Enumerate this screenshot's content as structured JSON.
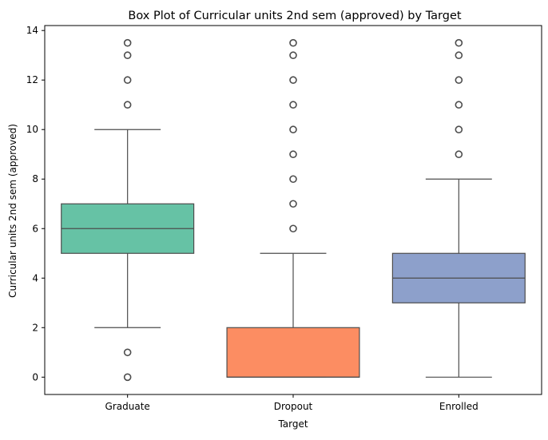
{
  "chart_data": {
    "type": "box",
    "title": "Box Plot of Curricular units 2nd sem (approved) by Target",
    "xlabel": "Target",
    "ylabel": "Curricular units 2nd sem (approved)",
    "categories": [
      "Graduate",
      "Dropout",
      "Enrolled"
    ],
    "ylim": [
      -0.7,
      14.2
    ],
    "yticks": [
      0,
      2,
      4,
      6,
      8,
      10,
      12,
      14
    ],
    "grid": false,
    "boxes": [
      {
        "category": "Graduate",
        "color": "#66c2a5",
        "whisker_low": 2,
        "q1": 5,
        "median": 6,
        "q3": 7,
        "whisker_high": 10,
        "outliers": [
          0,
          1,
          11,
          12,
          13,
          13.5
        ]
      },
      {
        "category": "Dropout",
        "color": "#fc8d62",
        "whisker_low": 0,
        "q1": 0,
        "median": 0,
        "q3": 2,
        "whisker_high": 5,
        "outliers": [
          6,
          7,
          8,
          9,
          10,
          11,
          12,
          13,
          13.5
        ]
      },
      {
        "category": "Enrolled",
        "color": "#8da0cb",
        "whisker_low": 0,
        "q1": 3,
        "median": 4,
        "q3": 5,
        "whisker_high": 8,
        "outliers": [
          9,
          10,
          11,
          12,
          13,
          13.5
        ]
      }
    ]
  }
}
